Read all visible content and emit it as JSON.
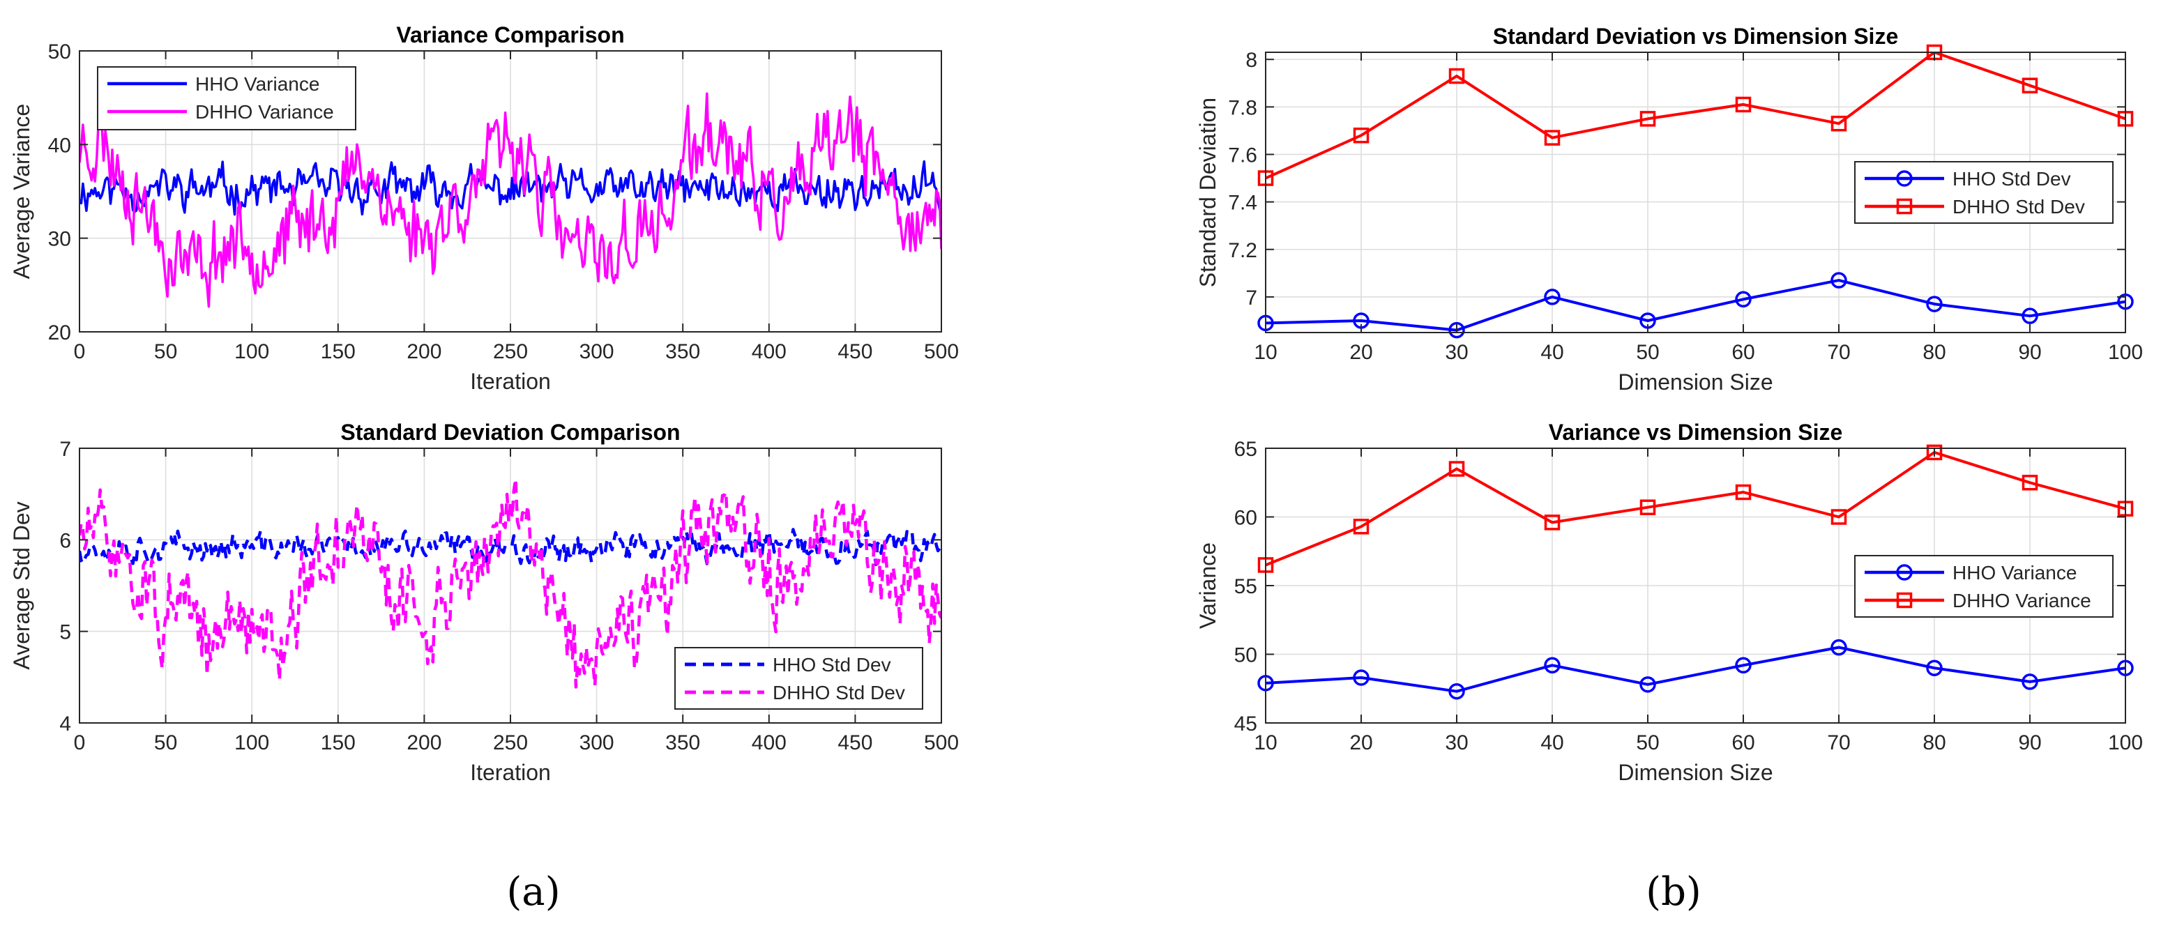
{
  "figure": {
    "captions": [
      "(a)",
      "(b)"
    ]
  },
  "colors": {
    "hho_blue": "#0000ff",
    "dhho_magenta": "#ff00ff",
    "dhho_red": "#ff0000",
    "axis": "#262626",
    "grid": "#dcdcdc"
  },
  "chart_data": [
    {
      "type": "line",
      "panel": "(a)",
      "title": "Variance Comparison",
      "xlabel": "Iteration",
      "ylabel": "Average Variance",
      "xlim": [
        0,
        500
      ],
      "ylim": [
        20,
        50
      ],
      "xticks": [
        0,
        50,
        100,
        150,
        200,
        250,
        300,
        350,
        400,
        450,
        500
      ],
      "yticks": [
        20,
        30,
        40,
        50
      ],
      "grid": true,
      "legend_position": "top-left",
      "series": [
        {
          "name": "HHO Variance",
          "color": "#0000ff",
          "style": "solid",
          "generator": "noise",
          "seed": 11,
          "mean": 35.2,
          "amp": 1.3,
          "n": 501
        },
        {
          "name": "DHHO Variance",
          "color": "#ff00ff",
          "style": "solid",
          "generator": "anchored",
          "seed": 23,
          "amp": 2.6,
          "min": 21.5,
          "max": 49.5,
          "n": 501,
          "anchors": [
            [
              0,
              40
            ],
            [
              10,
              41
            ],
            [
              25,
              37
            ],
            [
              40,
              33
            ],
            [
              50,
              29
            ],
            [
              70,
              27
            ],
            [
              90,
              30
            ],
            [
              110,
              29
            ],
            [
              130,
              31
            ],
            [
              150,
              34
            ],
            [
              165,
              39
            ],
            [
              180,
              33
            ],
            [
              200,
              30
            ],
            [
              220,
              34
            ],
            [
              240,
              38
            ],
            [
              260,
              40
            ],
            [
              268,
              35
            ],
            [
              280,
              30
            ],
            [
              300,
              27
            ],
            [
              320,
              30
            ],
            [
              340,
              32
            ],
            [
              350,
              38
            ],
            [
              370,
              41
            ],
            [
              390,
              36
            ],
            [
              410,
              33
            ],
            [
              430,
              38
            ],
            [
              445,
              42
            ],
            [
              460,
              37
            ],
            [
              480,
              33
            ],
            [
              500,
              30
            ]
          ]
        }
      ]
    },
    {
      "type": "line",
      "panel": "(a)",
      "title": "Standard Deviation Comparison",
      "xlabel": "Iteration",
      "ylabel": "Average Std Dev",
      "xlim": [
        0,
        500
      ],
      "ylim": [
        4,
        7
      ],
      "xticks": [
        0,
        50,
        100,
        150,
        200,
        250,
        300,
        350,
        400,
        450,
        500
      ],
      "yticks": [
        4,
        5,
        6,
        7
      ],
      "grid": true,
      "legend_position": "bottom-right",
      "series": [
        {
          "name": "HHO Std Dev",
          "color": "#0000ff",
          "style": "dashed",
          "generator": "noise",
          "seed": 37,
          "mean": 5.92,
          "amp": 0.09,
          "n": 501
        },
        {
          "name": "DHHO Std Dev",
          "color": "#ff00ff",
          "style": "dashed",
          "generator": "anchored",
          "seed": 51,
          "amp": 0.28,
          "min": 4.05,
          "max": 6.85,
          "n": 501,
          "anchors": [
            [
              0,
              6.1
            ],
            [
              15,
              6.0
            ],
            [
              30,
              5.7
            ],
            [
              45,
              5.2
            ],
            [
              60,
              5.1
            ],
            [
              75,
              4.9
            ],
            [
              95,
              5.1
            ],
            [
              115,
              5.0
            ],
            [
              135,
              5.6
            ],
            [
              150,
              5.9
            ],
            [
              165,
              6.1
            ],
            [
              180,
              5.4
            ],
            [
              200,
              5.1
            ],
            [
              220,
              5.6
            ],
            [
              240,
              6.0
            ],
            [
              260,
              6.2
            ],
            [
              275,
              5.5
            ],
            [
              290,
              4.6
            ],
            [
              305,
              4.8
            ],
            [
              320,
              5.0
            ],
            [
              340,
              5.3
            ],
            [
              355,
              6.0
            ],
            [
              375,
              6.2
            ],
            [
              395,
              5.7
            ],
            [
              415,
              5.5
            ],
            [
              435,
              6.0
            ],
            [
              450,
              6.2
            ],
            [
              465,
              5.8
            ],
            [
              485,
              5.6
            ],
            [
              500,
              5.2
            ]
          ]
        }
      ]
    },
    {
      "type": "line",
      "panel": "(b)",
      "title": "Standard Deviation vs Dimension Size",
      "xlabel": "Dimension Size",
      "ylabel": "Standard Deviation",
      "xlim": [
        10,
        100
      ],
      "ylim": [
        6.85,
        8.03
      ],
      "xticks": [
        10,
        20,
        30,
        40,
        50,
        60,
        70,
        80,
        90,
        100
      ],
      "yticks": [
        7,
        7.2,
        7.4,
        7.6,
        7.8,
        8
      ],
      "ytick_labels": [
        "7",
        "7.2",
        "7.4",
        "7.6",
        "7.8",
        "8"
      ],
      "grid": true,
      "legend_position": "right",
      "x": [
        10,
        20,
        30,
        40,
        50,
        60,
        70,
        80,
        90,
        100
      ],
      "series": [
        {
          "name": "HHO Std Dev",
          "color": "#0000ff",
          "marker": "circle",
          "values": [
            6.89,
            6.9,
            6.86,
            7.0,
            6.9,
            6.99,
            7.07,
            6.97,
            6.92,
            6.98
          ]
        },
        {
          "name": "DHHO Std Dev",
          "color": "#ff0000",
          "marker": "square",
          "values": [
            7.5,
            7.68,
            7.93,
            7.67,
            7.75,
            7.81,
            7.73,
            8.03,
            7.89,
            7.75
          ]
        }
      ]
    },
    {
      "type": "line",
      "panel": "(b)",
      "title": "Variance vs Dimension Size",
      "xlabel": "Dimension Size",
      "ylabel": "Variance",
      "xlim": [
        10,
        100
      ],
      "ylim": [
        45,
        65
      ],
      "xticks": [
        10,
        20,
        30,
        40,
        50,
        60,
        70,
        80,
        90,
        100
      ],
      "yticks": [
        45,
        50,
        55,
        60,
        65
      ],
      "grid": true,
      "legend_position": "right",
      "x": [
        10,
        20,
        30,
        40,
        50,
        60,
        70,
        80,
        90,
        100
      ],
      "series": [
        {
          "name": "HHO Variance",
          "color": "#0000ff",
          "marker": "circle",
          "values": [
            47.9,
            48.3,
            47.3,
            49.2,
            47.8,
            49.2,
            50.5,
            49.0,
            48.0,
            49.0
          ]
        },
        {
          "name": "DHHO Variance",
          "color": "#ff0000",
          "marker": "square",
          "values": [
            56.5,
            59.3,
            63.5,
            59.6,
            60.7,
            61.8,
            60.0,
            64.7,
            62.5,
            60.6
          ]
        }
      ]
    }
  ]
}
